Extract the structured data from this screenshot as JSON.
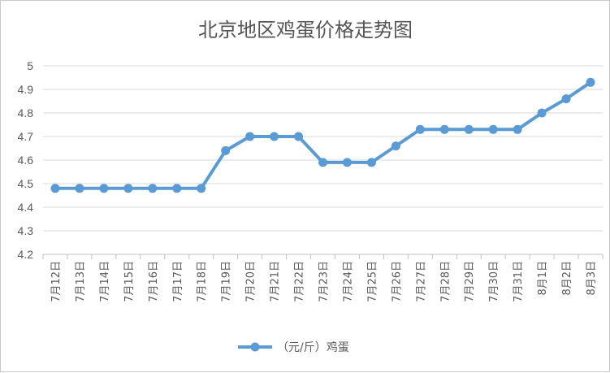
{
  "chart_data": {
    "type": "line",
    "title": "北京地区鸡蛋价格走势图",
    "categories": [
      "7月12日",
      "7月13日",
      "7月14日",
      "7月15日",
      "7月16日",
      "7月17日",
      "7月18日",
      "7月19日",
      "7月20日",
      "7月21日",
      "7月22日",
      "7月23日",
      "7月24日",
      "7月25日",
      "7月26日",
      "7月27日",
      "7月28日",
      "7月29日",
      "7月30日",
      "7月31日",
      "8月1日",
      "8月2日",
      "8月3日"
    ],
    "series": [
      {
        "name": "（元/斤）鸡蛋",
        "color": "#5b9bd5",
        "values": [
          4.48,
          4.48,
          4.48,
          4.48,
          4.48,
          4.48,
          4.48,
          4.64,
          4.7,
          4.7,
          4.7,
          4.59,
          4.59,
          4.59,
          4.66,
          4.73,
          4.73,
          4.73,
          4.73,
          4.73,
          4.8,
          4.86,
          4.93
        ]
      }
    ],
    "ylim": [
      4.2,
      5
    ],
    "yticks": [
      "4.2",
      "4.3",
      "4.4",
      "4.5",
      "4.6",
      "4.7",
      "4.8",
      "4.9",
      "5"
    ],
    "grid": true,
    "legend": "bottom"
  }
}
